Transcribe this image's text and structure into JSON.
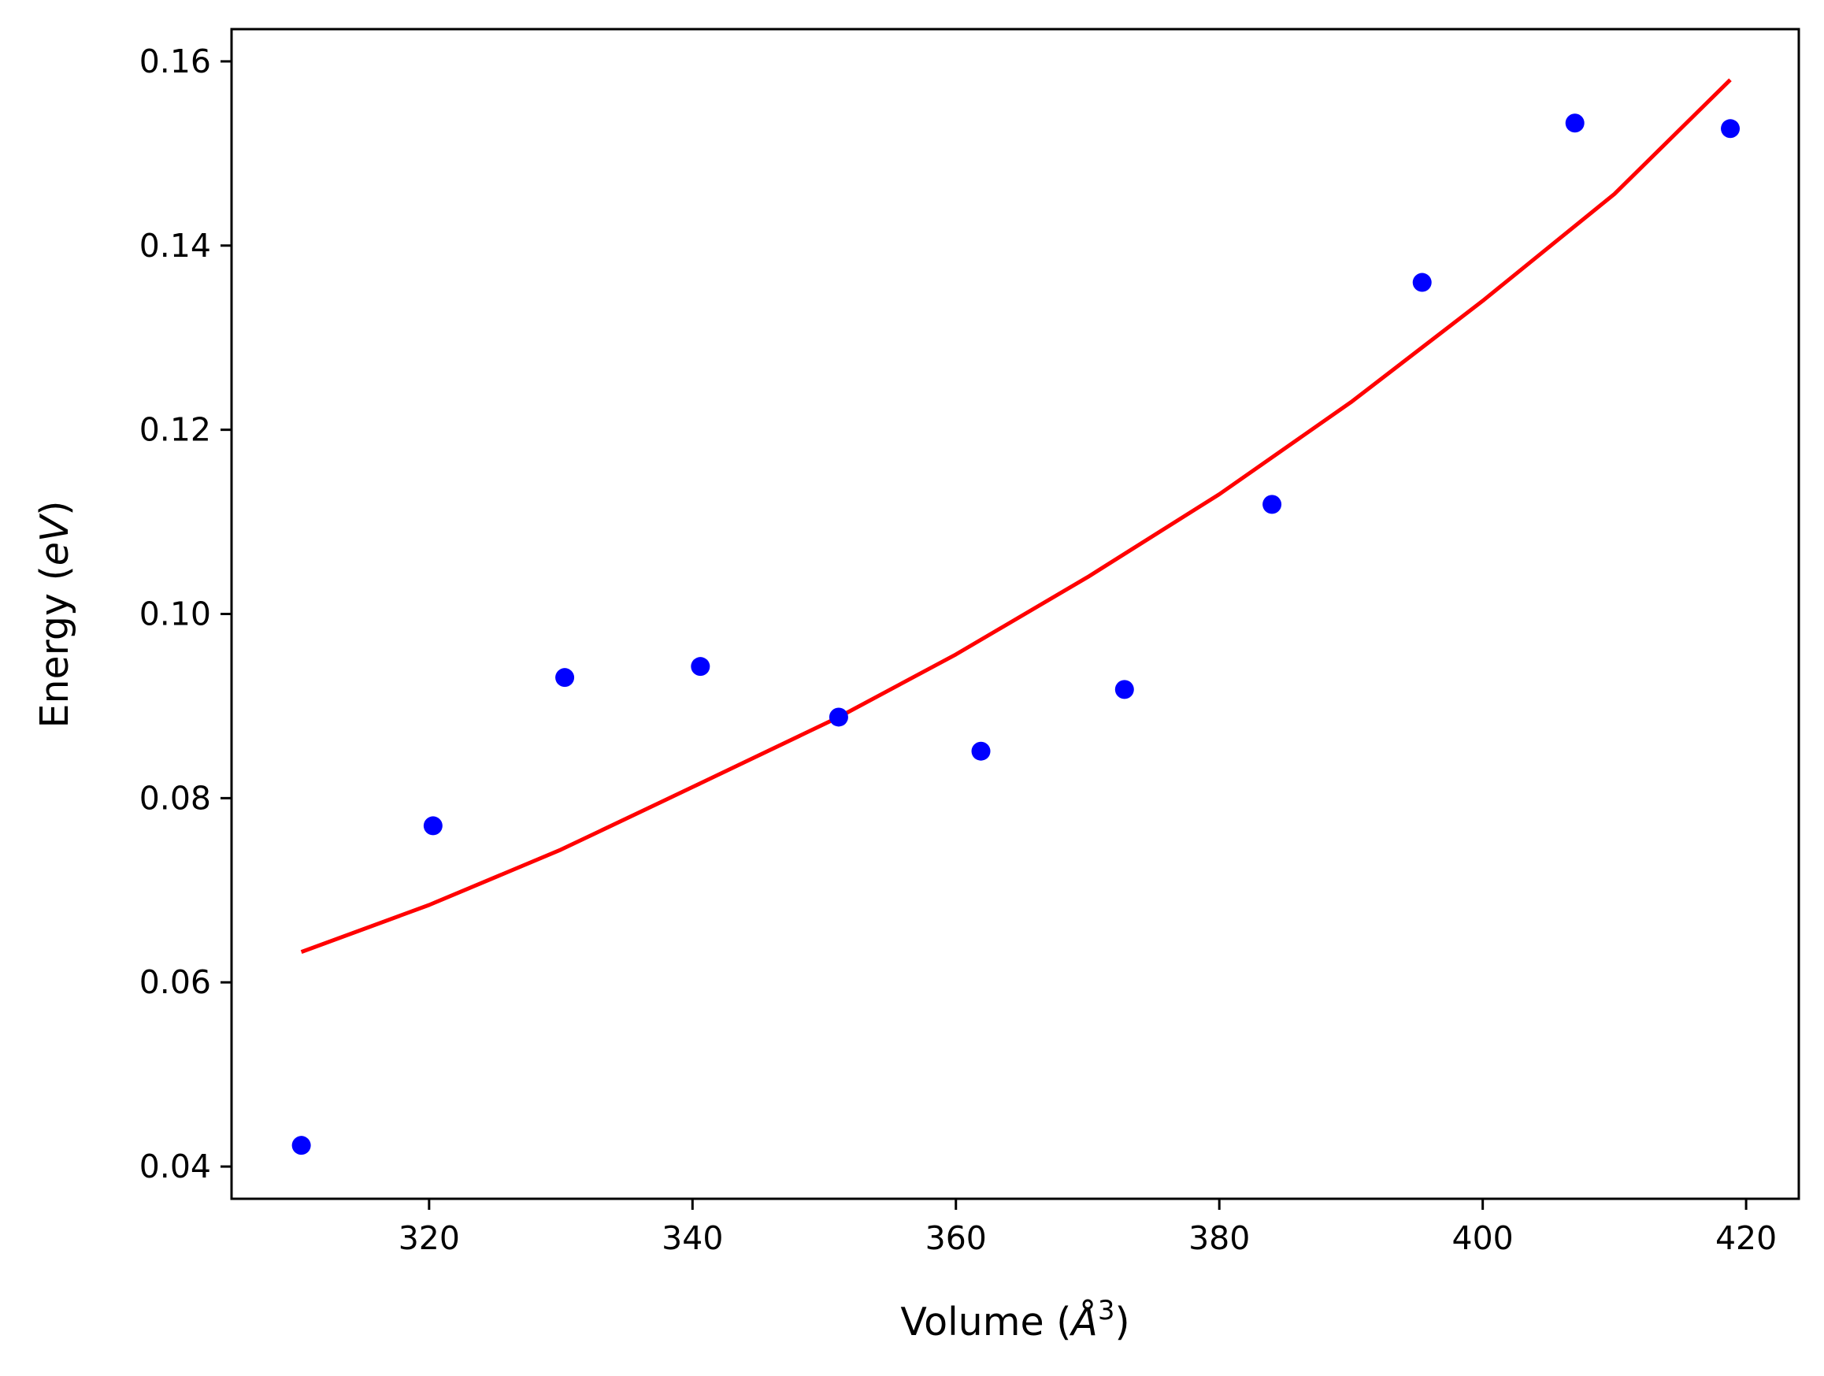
{
  "chart_data": {
    "type": "scatter",
    "title": "",
    "xlabel_parts": {
      "prefix": "Volume (",
      "symbol": "Å",
      "superscript": "3",
      "suffix": ")"
    },
    "ylabel_parts": {
      "prefix": "Energy (",
      "symbol": "eV",
      "suffix": ")"
    },
    "xlim": [
      305,
      424
    ],
    "ylim": [
      0.0365,
      0.1635
    ],
    "xticks": [
      {
        "value": 320,
        "label": "320"
      },
      {
        "value": 340,
        "label": "340"
      },
      {
        "value": 360,
        "label": "360"
      },
      {
        "value": 380,
        "label": "380"
      },
      {
        "value": 400,
        "label": "400"
      },
      {
        "value": 420,
        "label": "420"
      }
    ],
    "yticks": [
      {
        "value": 0.04,
        "label": "0.04"
      },
      {
        "value": 0.06,
        "label": "0.06"
      },
      {
        "value": 0.08,
        "label": "0.08"
      },
      {
        "value": 0.1,
        "label": "0.10"
      },
      {
        "value": 0.12,
        "label": "0.12"
      },
      {
        "value": 0.14,
        "label": "0.14"
      },
      {
        "value": 0.16,
        "label": "0.16"
      }
    ],
    "grid": false,
    "legend": "none",
    "series": [
      {
        "kind": "scatter",
        "color": "#0000ff",
        "points": [
          {
            "x": 310.3,
            "y": 0.0423
          },
          {
            "x": 320.3,
            "y": 0.077
          },
          {
            "x": 330.3,
            "y": 0.0931
          },
          {
            "x": 340.6,
            "y": 0.0943
          },
          {
            "x": 351.1,
            "y": 0.0888
          },
          {
            "x": 361.9,
            "y": 0.0851
          },
          {
            "x": 372.8,
            "y": 0.0918
          },
          {
            "x": 384.0,
            "y": 0.1119
          },
          {
            "x": 395.4,
            "y": 0.136
          },
          {
            "x": 407.0,
            "y": 0.1533
          },
          {
            "x": 418.8,
            "y": 0.1527
          }
        ]
      },
      {
        "kind": "line",
        "color": "#ff0000",
        "points": [
          {
            "x": 310.3,
            "y": 0.0633
          },
          {
            "x": 320.0,
            "y": 0.0684
          },
          {
            "x": 330.0,
            "y": 0.0744
          },
          {
            "x": 340.0,
            "y": 0.0812
          },
          {
            "x": 351.1,
            "y": 0.0888
          },
          {
            "x": 360.0,
            "y": 0.0956
          },
          {
            "x": 370.0,
            "y": 0.104
          },
          {
            "x": 380.0,
            "y": 0.113
          },
          {
            "x": 390.0,
            "y": 0.123
          },
          {
            "x": 400.0,
            "y": 0.134
          },
          {
            "x": 410.0,
            "y": 0.1456
          },
          {
            "x": 418.8,
            "y": 0.158
          }
        ]
      }
    ]
  }
}
